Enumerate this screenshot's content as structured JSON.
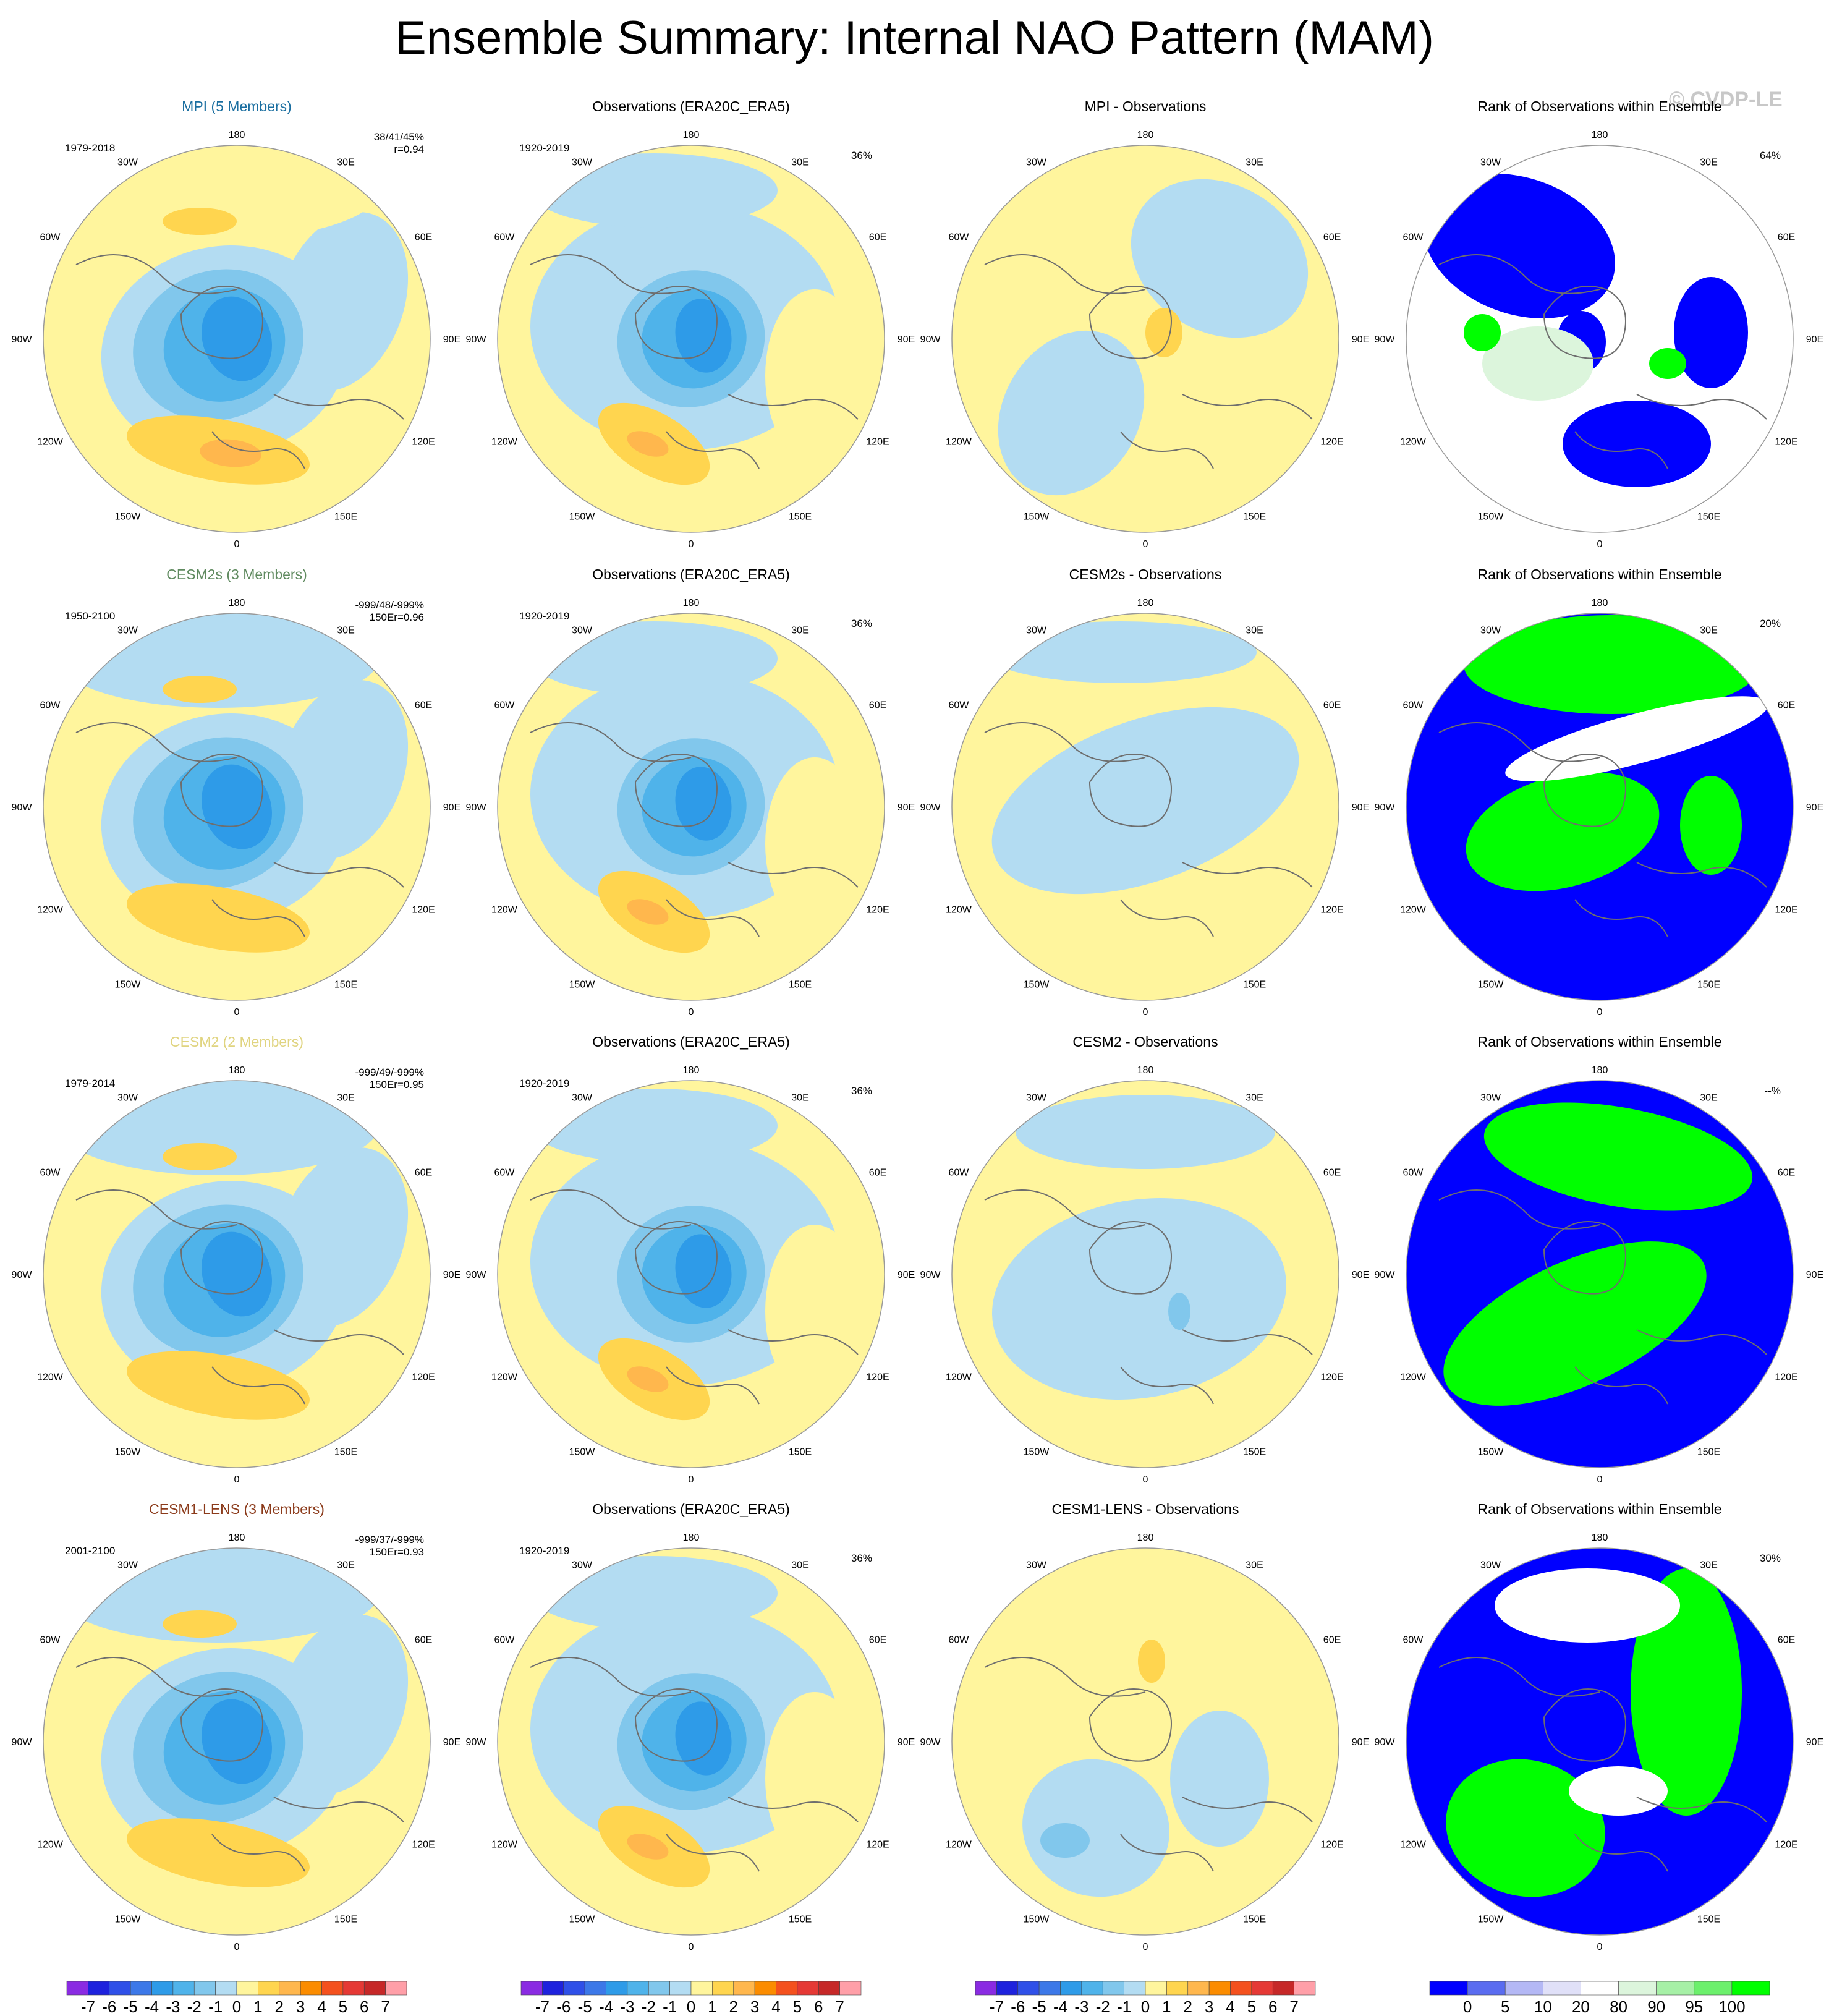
{
  "page": {
    "title": "Ensemble Summary: Internal NAO Pattern (MAM)",
    "copyright": "© CVDP-LE"
  },
  "colors": {
    "land_coast": "#6e6e6e",
    "ocean_bg": "#ffffff",
    "pos_1": "#fff59d",
    "pos_2": "#ffd54f",
    "pos_3": "#ffb74d",
    "pos_4": "#fb8c00",
    "neg_1": "#b3dcf2",
    "neg_2": "#81c7ec",
    "neg_3": "#4fb3ea",
    "neg_4": "#2e9be8",
    "rank_low": "#0000ff",
    "rank_mid": "#ffffff",
    "rank_high": "#00ff00",
    "rank_highlight": "#dcf5dc",
    "mpi_title": "#1a6ea0",
    "cesm2s_title": "#5f8a5f",
    "cesm2_title": "#e0d480",
    "lens_title": "#8b3a1a"
  },
  "map_labels": {
    "top": "180",
    "bottom": "0",
    "lon_left": [
      "150W",
      "120W",
      "90W",
      "60W",
      "30W"
    ],
    "lon_right": [
      "150E",
      "120E",
      "90E",
      "60E",
      "30E"
    ]
  },
  "chart_data": [
    {
      "type": "heatmap",
      "projection": "north-polar-stereographic",
      "units": "hPa",
      "colorbar_labels": [
        "-7",
        "-6",
        "-5",
        "-4",
        "-3",
        "-2",
        "-1",
        "0",
        "1",
        "2",
        "3",
        "4",
        "5",
        "6",
        "7"
      ],
      "colorbar_colors": [
        "#8a2be2",
        "#1e22dd",
        "#2f50e8",
        "#3c78e8",
        "#2e9be8",
        "#4fb3ea",
        "#81c7ec",
        "#b3dcf2",
        "#fff59d",
        "#ffd54f",
        "#ffb74d",
        "#fb8c00",
        "#f4511e",
        "#e53935",
        "#c62828",
        "#ff9fa8"
      ],
      "column": "ensemble model",
      "rows": [
        {
          "title": "MPI (5 Members)",
          "period": "1979-2018",
          "stats": "38/41/45%",
          "corr": "r=0.94"
        },
        {
          "title": "CESM2s (3 Members)",
          "period": "1950-2100",
          "stats": "-999/48/-999%",
          "corr": "150Er=0.96"
        },
        {
          "title": "CESM2 (2 Members)",
          "period": "1979-2014",
          "stats": "-999/49/-999%",
          "corr": "150Er=0.95"
        },
        {
          "title": "CESM1-LENS (3 Members)",
          "period": "2001-2100",
          "stats": "-999/37/-999%",
          "corr": "150Er=0.93"
        }
      ]
    },
    {
      "type": "heatmap",
      "projection": "north-polar-stereographic",
      "units": "hPa",
      "column": "observations",
      "rows": [
        {
          "title": "Observations (ERA20C_ERA5)",
          "period": "1920-2019",
          "pct": "36%"
        },
        {
          "title": "Observations (ERA20C_ERA5)",
          "period": "1920-2019",
          "pct": "36%"
        },
        {
          "title": "Observations (ERA20C_ERA5)",
          "period": "1920-2019",
          "pct": "36%"
        },
        {
          "title": "Observations (ERA20C_ERA5)",
          "period": "1920-2019",
          "pct": "36%"
        }
      ]
    },
    {
      "type": "heatmap",
      "projection": "north-polar-stereographic",
      "units": "hPa",
      "column": "difference",
      "rows": [
        {
          "title": "MPI - Observations"
        },
        {
          "title": "CESM2s - Observations"
        },
        {
          "title": "CESM2 - Observations"
        },
        {
          "title": "CESM1-LENS - Observations"
        }
      ]
    },
    {
      "type": "heatmap",
      "projection": "north-polar-stereographic",
      "units": "%",
      "column": "rank",
      "colorbar_labels": [
        "0",
        "5",
        "10",
        "20",
        "80",
        "90",
        "95",
        "100"
      ],
      "colorbar_colors": [
        "#0000ff",
        "#5a6cf0",
        "#b4b8f5",
        "#e0e0f8",
        "#ffffff",
        "#dcf5dc",
        "#a6f0a6",
        "#6cf06c",
        "#00ff00"
      ],
      "rows": [
        {
          "title": "Rank of Observations within Ensemble",
          "pct": "64%"
        },
        {
          "title": "Rank of Observations within Ensemble",
          "pct": "20%"
        },
        {
          "title": "Rank of Observations within Ensemble",
          "pct": "--%"
        },
        {
          "title": "Rank of Observations within Ensemble",
          "pct": "30%"
        }
      ]
    }
  ]
}
